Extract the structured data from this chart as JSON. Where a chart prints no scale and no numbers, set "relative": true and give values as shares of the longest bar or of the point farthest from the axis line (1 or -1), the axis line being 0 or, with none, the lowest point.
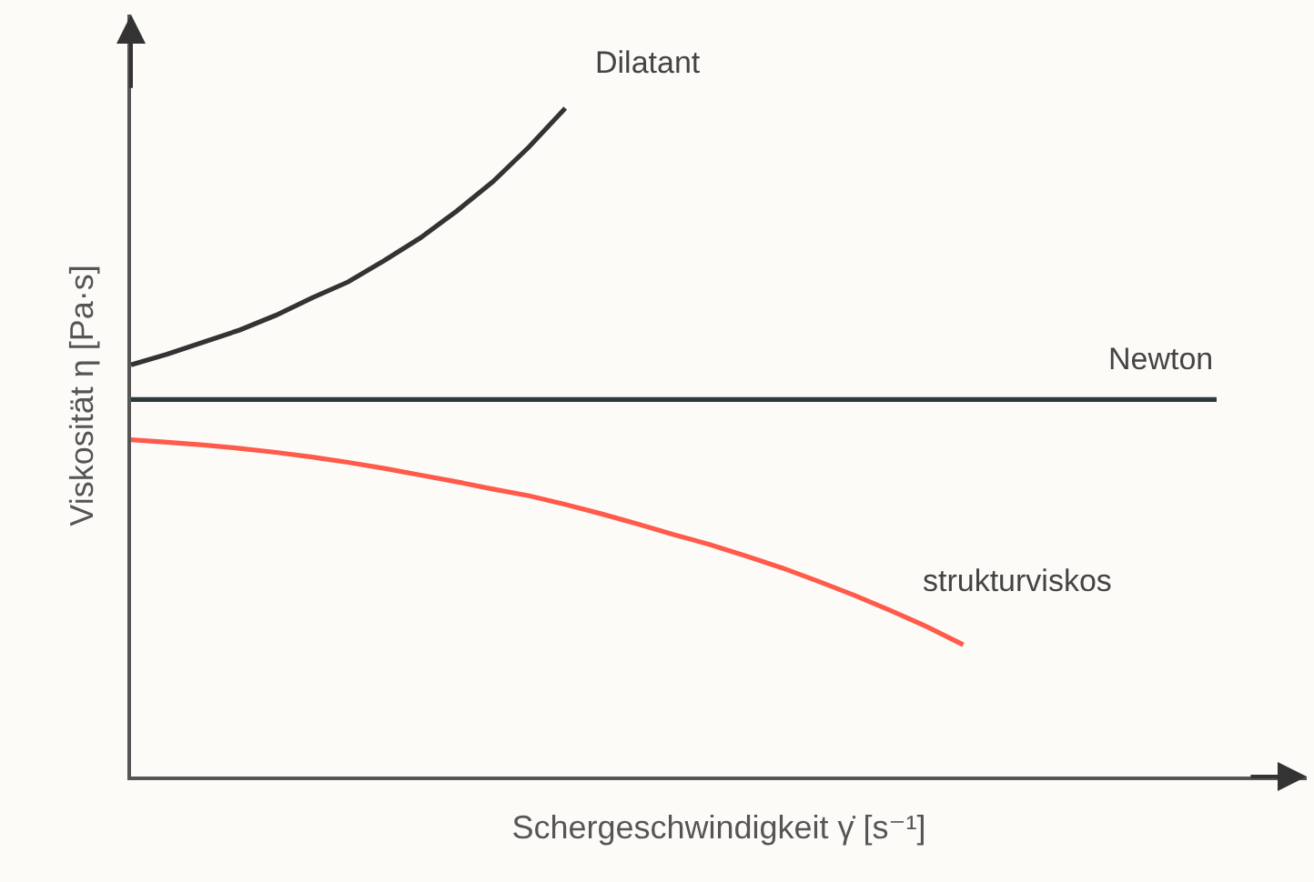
{
  "chart_data": {
    "type": "line",
    "relative": true,
    "xlabel": "Schergeschwindigkeit γ̇ [s⁻¹]",
    "ylabel": "Viskosität η [Pa·s]",
    "grid": false,
    "legend": false,
    "marker": "none",
    "line_style": "solid",
    "categories": [
      null,
      null,
      null,
      null,
      null,
      null,
      null,
      null,
      null,
      null,
      null,
      null,
      null,
      null,
      null,
      null,
      null,
      null,
      null,
      null,
      null,
      null,
      null,
      null,
      null,
      null,
      null,
      null,
      null,
      null,
      null
    ],
    "series": [
      {
        "name": "Dilatant",
        "color": "#333333",
        "values": [
          0.616,
          0.632,
          0.65,
          0.668,
          0.69,
          0.716,
          0.74,
          0.772,
          0.806,
          0.846,
          0.89,
          0.942,
          1,
          null,
          null,
          null,
          null,
          null,
          null,
          null,
          null,
          null,
          null,
          null,
          null,
          null,
          null,
          null,
          null,
          null,
          null
        ]
      },
      {
        "name": "Newton",
        "color": "#2b3a3a",
        "values": [
          0.564,
          0.564,
          0.564,
          0.564,
          0.564,
          0.564,
          0.564,
          0.564,
          0.564,
          0.564,
          0.564,
          0.564,
          0.564,
          0.564,
          0.564,
          0.564,
          0.564,
          0.564,
          0.564,
          0.564,
          0.564,
          0.564,
          0.564,
          0.564,
          0.564,
          0.564,
          0.564,
          0.564,
          0.564,
          0.564,
          0.564
        ]
      },
      {
        "name": "strukturviskos",
        "color": "#ff5a4a",
        "values": [
          0.504,
          0.5,
          0.496,
          0.491,
          0.485,
          0.478,
          0.47,
          0.461,
          0.451,
          0.441,
          0.43,
          0.42,
          0.407,
          0.393,
          0.378,
          0.362,
          0.347,
          0.33,
          0.312,
          0.292,
          0.271,
          0.248,
          0.224,
          0.197,
          null,
          null,
          null,
          null,
          null,
          null,
          null
        ]
      }
    ]
  }
}
